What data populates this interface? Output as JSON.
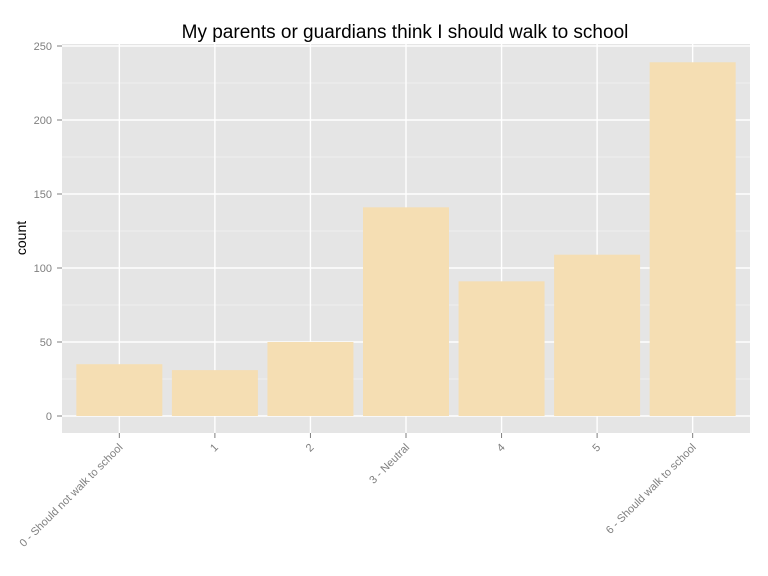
{
  "chart_data": {
    "type": "bar",
    "title": "My parents or guardians think I should walk to school",
    "xlabel": "",
    "ylabel": "count",
    "categories": [
      "0 - Should not walk to school",
      "1",
      "2",
      "3 - Neutral",
      "4",
      "5",
      "6 - Should walk to school"
    ],
    "values": [
      35,
      31,
      50,
      141,
      91,
      109,
      239
    ],
    "ylim": [
      0,
      250
    ],
    "yticks": [
      0,
      50,
      100,
      150,
      200,
      250
    ],
    "grid": true,
    "legend": "none",
    "colors": {
      "bar": "#f5deb3",
      "panel": "#e5e5e5",
      "grid_major": "#ffffff",
      "tick_text": "#7f7f7f"
    }
  }
}
